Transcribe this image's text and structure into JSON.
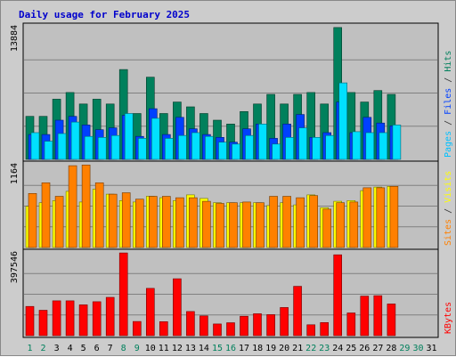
{
  "chart_data": {
    "type": "bar",
    "title": "Daily usage for February 2025",
    "days": [
      "1",
      "2",
      "3",
      "4",
      "5",
      "6",
      "7",
      "8",
      "9",
      "10",
      "11",
      "12",
      "13",
      "14",
      "15",
      "16",
      "17",
      "18",
      "19",
      "20",
      "21",
      "22",
      "23",
      "24",
      "25",
      "26",
      "27",
      "28",
      "29",
      "30",
      "31"
    ],
    "weekend_days": [
      "1",
      "2",
      "8",
      "9",
      "15",
      "16",
      "22",
      "23",
      "29",
      "30"
    ],
    "panels": [
      {
        "name": "hits-files-pages",
        "max_label": "13884",
        "ymax": 13884,
        "axis_labels": [
          {
            "text": "Pages",
            "color": "#00c0ff"
          },
          {
            "text": " / ",
            "color": "#333333"
          },
          {
            "text": "Files",
            "color": "#0040ff"
          },
          {
            "text": " / ",
            "color": "#333333"
          },
          {
            "text": "Hits",
            "color": "#00805c"
          }
        ],
        "series": [
          {
            "name": "Hits",
            "color": "#00805c",
            "values": [
              4500,
              4500,
              6300,
              7000,
              5800,
              6300,
              5800,
              9400,
              4800,
              8600,
              4800,
              6000,
              5500,
              4800,
              4100,
              3700,
              5000,
              5800,
              6800,
              5800,
              6800,
              7000,
              5800,
              13800,
              7000,
              6000,
              7200,
              6800,
              null,
              null,
              null
            ]
          },
          {
            "name": "Files",
            "color": "#0040ff",
            "values": [
              2600,
              2600,
              4100,
              4500,
              3600,
              3100,
              3300,
              4600,
              2400,
              5300,
              2600,
              4400,
              3200,
              2600,
              2300,
              1800,
              3200,
              3700,
              2200,
              3700,
              4700,
              2300,
              2800,
              6000,
              2800,
              4400,
              3800,
              3500,
              null,
              null,
              null
            ]
          },
          {
            "name": "Pages",
            "color": "#00e0ff",
            "values": [
              2800,
              1900,
              2700,
              3900,
              2400,
              2300,
              2500,
              4800,
              2200,
              4300,
              2200,
              2500,
              2800,
              2400,
              1800,
              1600,
              2500,
              3700,
              1600,
              2300,
              3300,
              2300,
              2500,
              8000,
              2900,
              2800,
              2800,
              3600,
              null,
              null,
              null
            ]
          }
        ]
      },
      {
        "name": "visits-sites",
        "max_label": "1164",
        "ymax": 1164,
        "axis_labels": [
          {
            "text": "Sites",
            "color": "#ff8000"
          },
          {
            "text": " / ",
            "color": "#333333"
          },
          {
            "text": "Visits",
            "color": "#ffff00"
          }
        ],
        "series": [
          {
            "name": "Visits",
            "color": "#ffff00",
            "values": [
              580,
              630,
              660,
              790,
              640,
              820,
              750,
              660,
              640,
              720,
              700,
              660,
              740,
              690,
              630,
              630,
              630,
              630,
              590,
              630,
              600,
              740,
              560,
              650,
              660,
              800,
              850,
              860,
              null,
              null,
              null
            ]
          },
          {
            "name": "Sites",
            "color": "#ff8000",
            "values": [
              760,
              910,
              720,
              1150,
              1160,
              910,
              750,
              770,
              680,
              720,
              720,
              700,
              700,
              650,
              620,
              630,
              640,
              630,
              720,
              720,
              700,
              730,
              540,
              630,
              640,
              840,
              840,
              860,
              null,
              null,
              null
            ]
          }
        ]
      },
      {
        "name": "kbytes",
        "max_label": "397546",
        "ymax": 397546,
        "axis_labels": [
          {
            "text": "KBytes",
            "color": "#ff0000"
          }
        ],
        "series": [
          {
            "name": "KBytes",
            "color": "#ff0000",
            "values": [
              140000,
              122000,
              167000,
              167000,
              148000,
              163000,
              184000,
              397000,
              68000,
              227000,
              67000,
              273000,
              116000,
              95000,
              56000,
              62000,
              93000,
              105000,
              101000,
              135000,
              237000,
              52000,
              63000,
              388000,
              109000,
              190000,
              192000,
              152000,
              null,
              null,
              null
            ]
          }
        ]
      }
    ]
  }
}
